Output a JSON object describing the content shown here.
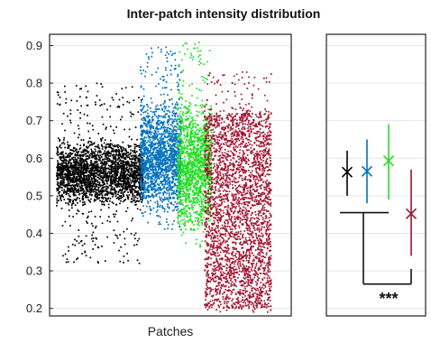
{
  "chart_data": {
    "type": "scatter",
    "title": "Inter-patch intensity distribution",
    "xlabel": "Patches",
    "ylabel": "",
    "ylim": [
      0.18,
      0.93
    ],
    "yticks": [
      "0.2",
      "0.3",
      "0.4",
      "0.5",
      "0.6",
      "0.7",
      "0.8",
      "0.9"
    ],
    "grid": "horizontal",
    "series": [
      {
        "color": "#000000",
        "mean": 0.563,
        "whisker_low": 0.5,
        "whisker_high": 0.62,
        "y_core": [
          0.47,
          0.65
        ],
        "y_tail": [
          0.32,
          0.8
        ]
      },
      {
        "color": "#0072bd",
        "mean": 0.565,
        "whisker_low": 0.48,
        "whisker_high": 0.65,
        "y_core": [
          0.44,
          0.76
        ],
        "y_tail": [
          0.41,
          0.9
        ]
      },
      {
        "color": "#22dd22",
        "mean": 0.593,
        "whisker_low": 0.49,
        "whisker_high": 0.69,
        "y_core": [
          0.4,
          0.76
        ],
        "y_tail": [
          0.36,
          0.91
        ]
      },
      {
        "color": "#a2142f",
        "mean": 0.452,
        "whisker_low": 0.34,
        "whisker_high": 0.57,
        "y_core": [
          0.2,
          0.72
        ],
        "y_tail": [
          0.19,
          0.83
        ]
      }
    ],
    "comparison": {
      "groups": "1-3 vs 4",
      "label": "***"
    }
  }
}
